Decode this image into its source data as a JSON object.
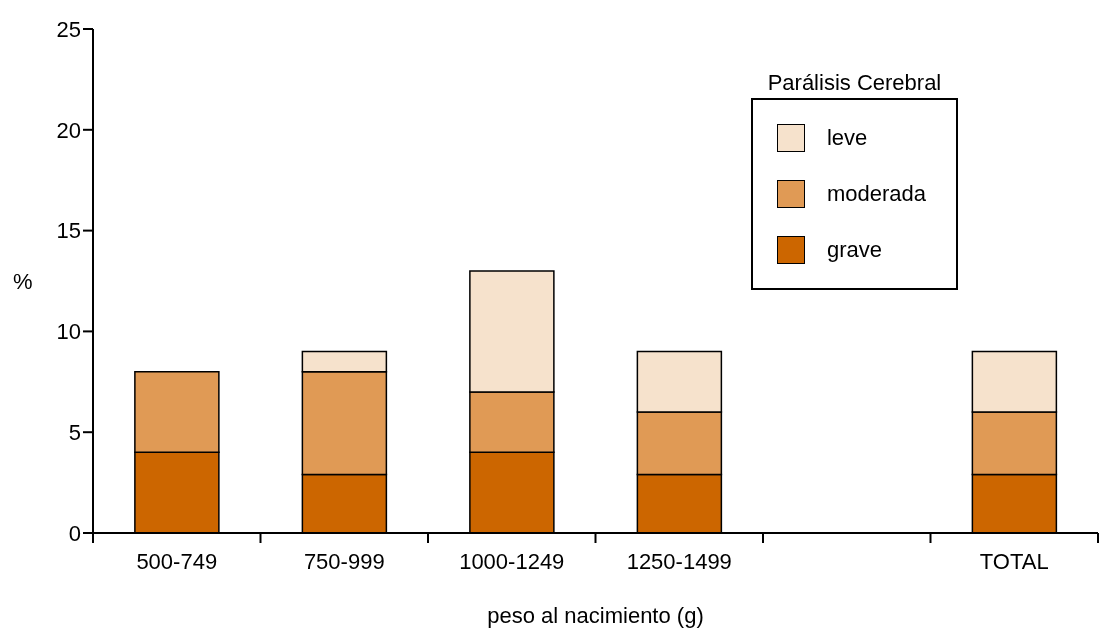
{
  "chart_data": {
    "type": "bar",
    "stacked": true,
    "categories": [
      "500-749",
      "750-999",
      "1000-1249",
      "1250-1499",
      null,
      "TOTAL"
    ],
    "series": [
      {
        "name": "grave",
        "color": "#cc6600",
        "values": [
          4,
          2.9,
          4,
          2.9,
          null,
          2.9
        ]
      },
      {
        "name": "moderada",
        "color": "#e09a55",
        "values": [
          4,
          5.1,
          3,
          3.1,
          null,
          3.1
        ]
      },
      {
        "name": "leve",
        "color": "#f6e2cc",
        "values": [
          0,
          1,
          6,
          3,
          null,
          3
        ]
      }
    ],
    "xlabel": "peso al nacimiento (g)",
    "ylabel": "%",
    "legend_title": "Parálisis Cerebral",
    "legend": "top right",
    "ylim": [
      0,
      25
    ],
    "yticks": [
      0,
      5,
      10,
      15,
      20,
      25
    ],
    "grid": false
  }
}
